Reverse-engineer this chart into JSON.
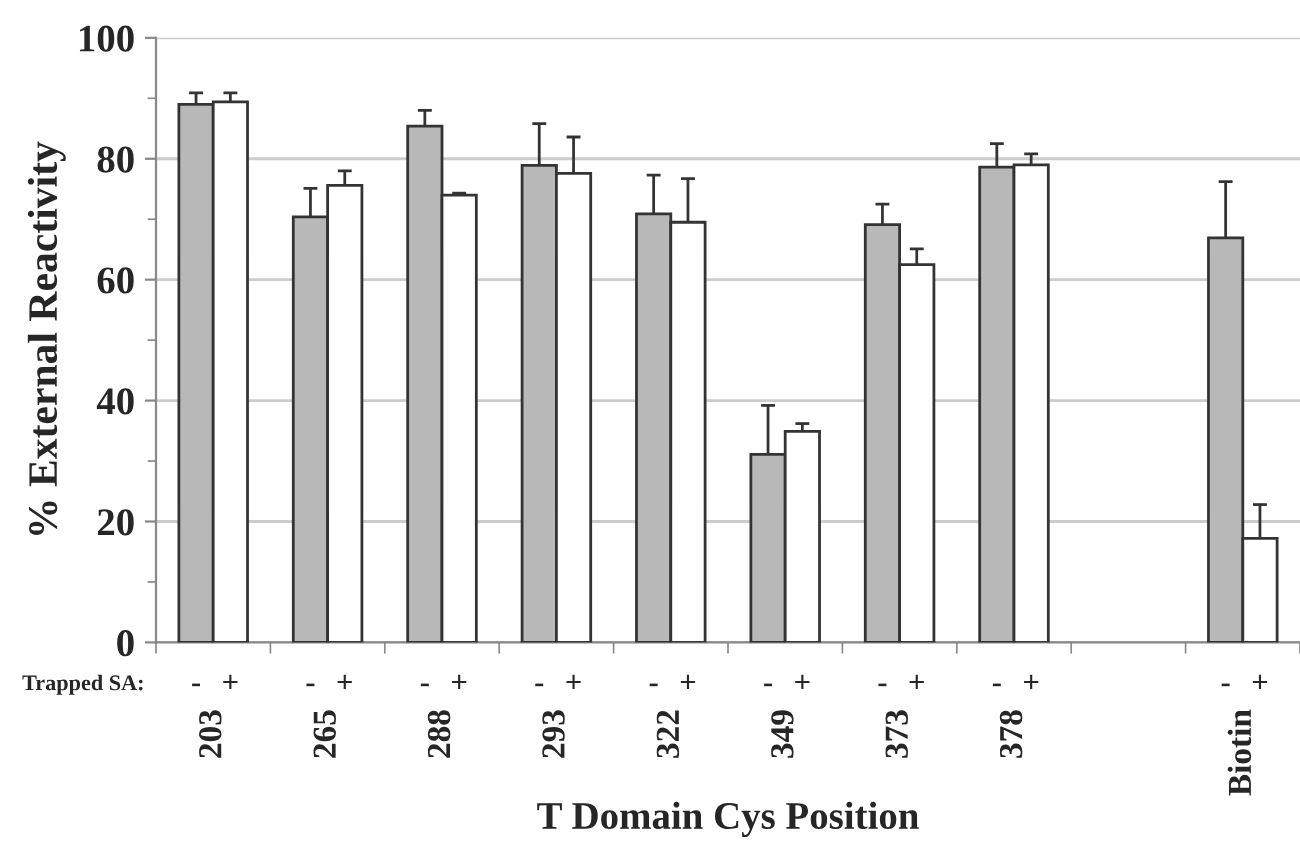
{
  "chart_data": {
    "type": "bar",
    "xlabel": "T Domain Cys Position",
    "ylabel": "% External Reactivity",
    "legend_title": "Trapped SA:",
    "categories": [
      "203",
      "265",
      "288",
      "293",
      "322",
      "349",
      "373",
      "378",
      null,
      "Biotin"
    ],
    "series": [
      {
        "name": "-",
        "color": "#b8b8b8",
        "values": [
          89.0,
          70.4,
          85.4,
          78.9,
          70.9,
          31.1,
          69.1,
          78.6,
          null,
          66.9
        ],
        "errors": [
          1.9,
          4.7,
          2.6,
          6.9,
          6.4,
          8.1,
          3.4,
          3.9,
          null,
          9.3
        ]
      },
      {
        "name": "+",
        "color": "#ffffff",
        "values": [
          89.4,
          75.6,
          74.0,
          77.6,
          69.5,
          34.9,
          62.5,
          79.0,
          null,
          17.2
        ],
        "errors": [
          1.5,
          2.4,
          0.3,
          6.0,
          7.2,
          1.3,
          2.6,
          1.8,
          null,
          5.6
        ]
      }
    ],
    "ylim": [
      0,
      100
    ],
    "yticks": [
      0,
      20,
      40,
      60,
      80,
      100
    ],
    "grid": "y",
    "legend": false
  }
}
